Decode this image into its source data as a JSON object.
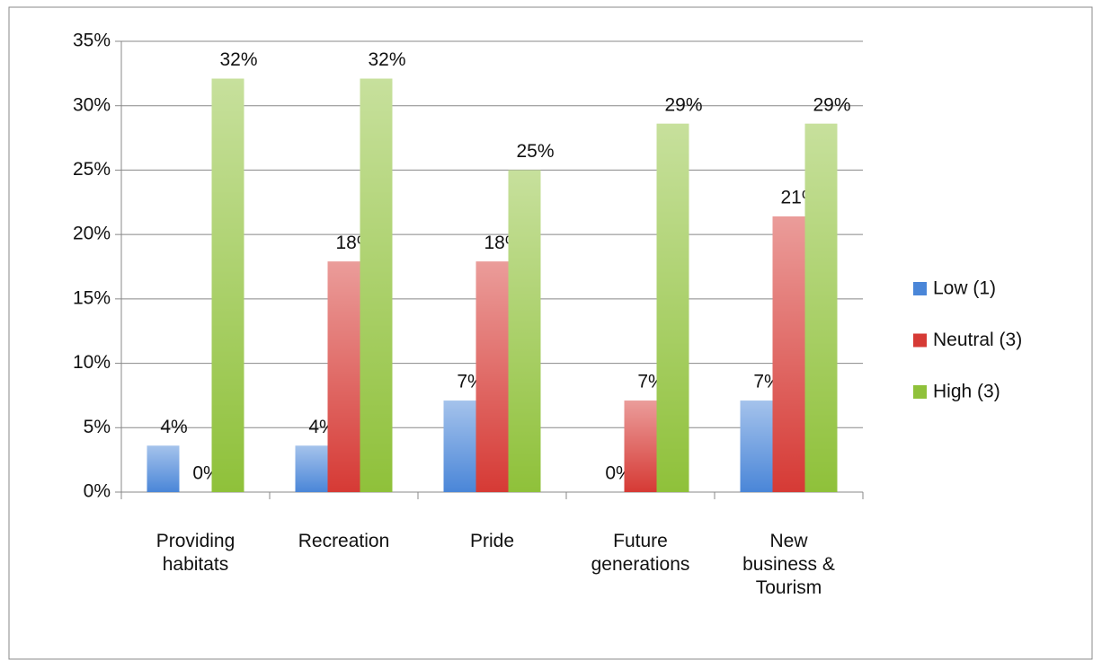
{
  "chart_data": {
    "type": "bar",
    "categories": [
      "Providing habitats",
      "Recreation",
      "Pride",
      "Future generations",
      "New business & Tourism"
    ],
    "series": [
      {
        "name": "Low (1)",
        "color": "#4a86d8",
        "values": [
          3.6,
          3.6,
          7.1,
          0,
          7.1
        ],
        "value_labels": [
          "4%",
          "4%",
          "7%",
          "0%",
          "7%"
        ]
      },
      {
        "name": "Neutral (3)",
        "color": "#d63a35",
        "values": [
          0,
          17.9,
          17.9,
          7.1,
          21.4
        ],
        "value_labels": [
          "0%",
          "18%",
          "18%",
          "7%",
          "21%"
        ]
      },
      {
        "name": "High (3)",
        "color": "#8fc13a",
        "values": [
          32.1,
          32.1,
          25,
          28.6,
          28.6
        ],
        "value_labels": [
          "32%",
          "32%",
          "25%",
          "29%",
          "29%"
        ]
      }
    ],
    "ylim": [
      0,
      35
    ],
    "yticks": [
      {
        "value": 0,
        "label": "0%"
      },
      {
        "value": 5,
        "label": "5%"
      },
      {
        "value": 10,
        "label": "10%"
      },
      {
        "value": 15,
        "label": "15%"
      },
      {
        "value": 20,
        "label": "20%"
      },
      {
        "value": 25,
        "label": "25%"
      },
      {
        "value": 30,
        "label": "30%"
      },
      {
        "value": 35,
        "label": "35%"
      }
    ],
    "grid": true,
    "legend": "right"
  }
}
